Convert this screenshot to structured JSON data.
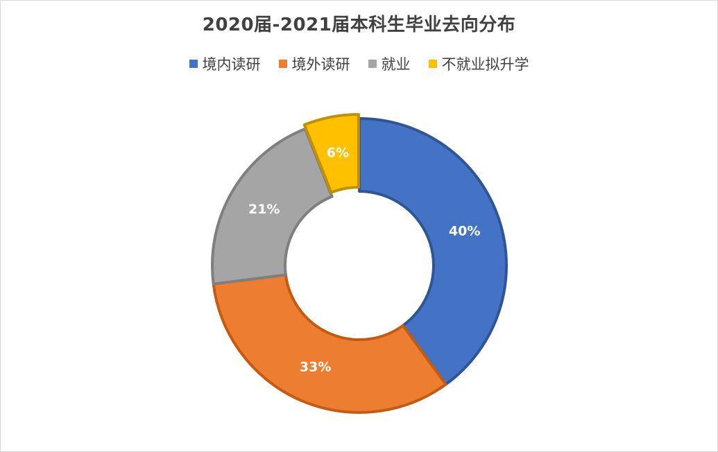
{
  "chart_data": {
    "type": "pie",
    "title": "2020届-2021届本科生毕业去向分布",
    "legend_position": "top",
    "categories": [
      "境内读研",
      "境外读研",
      "就业",
      "不就业拟升学"
    ],
    "values": [
      40,
      33,
      21,
      6
    ],
    "labels": [
      "40%",
      "33%",
      "21%",
      "6%"
    ],
    "colors": [
      "#4472C4",
      "#ED7D31",
      "#A5A5A5",
      "#FFC000"
    ],
    "border_colors": [
      "#2F5597",
      "#C55A11",
      "#7F7F7F",
      "#BF9000"
    ],
    "style": "doughnut"
  }
}
